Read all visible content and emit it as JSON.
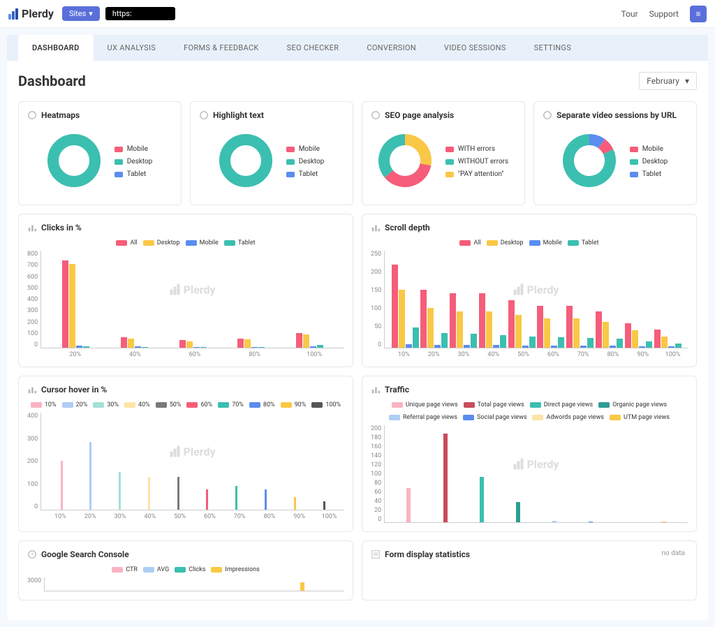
{
  "brand": "Plerdy",
  "topbar": {
    "sites_label": "Sites",
    "url": "https:",
    "tour": "Tour",
    "support": "Support"
  },
  "tabs": [
    {
      "id": "dashboard",
      "label": "DASHBOARD",
      "active": true
    },
    {
      "id": "ux",
      "label": "UX ANALYSIS",
      "active": false
    },
    {
      "id": "forms",
      "label": "FORMS & FEEDBACK",
      "active": false
    },
    {
      "id": "seo",
      "label": "SEO CHECKER",
      "active": false
    },
    {
      "id": "conv",
      "label": "CONVERSION",
      "active": false
    },
    {
      "id": "video",
      "label": "VIDEO SESSIONS",
      "active": false
    },
    {
      "id": "settings",
      "label": "SETTINGS",
      "active": false
    }
  ],
  "page_title": "Dashboard",
  "period": "February",
  "colors": {
    "pink": "#f55d7a",
    "yellow": "#f9c846",
    "blue": "#5b8def",
    "teal": "#3bbfb0",
    "gray": "#7a7a7a",
    "pink_light": "#f9b3c1",
    "yellow_light": "#fde4a6",
    "blue_light": "#aecdf5",
    "teal_light": "#a3e0d8",
    "gray_mid": "#bfbfbf",
    "teal_dark": "#2e9d91",
    "red_dark": "#c94b5e"
  },
  "donuts": {
    "heatmaps": {
      "title": "Heatmaps",
      "legend": [
        {
          "label": "Mobile",
          "color": "#f55d7a"
        },
        {
          "label": "Desktop",
          "color": "#3bbfb0"
        },
        {
          "label": "Tablet",
          "color": "#5b8def"
        }
      ],
      "segments": [
        {
          "color": "#3bbfb0",
          "pct": 100
        }
      ]
    },
    "highlight": {
      "title": "Highlight text",
      "legend": [
        {
          "label": "Mobile",
          "color": "#f55d7a"
        },
        {
          "label": "Desktop",
          "color": "#3bbfb0"
        },
        {
          "label": "Tablet",
          "color": "#5b8def"
        }
      ],
      "segments": [
        {
          "color": "#3bbfb0",
          "pct": 100
        }
      ]
    },
    "seo": {
      "title": "SEO page analysis",
      "legend": [
        {
          "label": "WITH errors",
          "color": "#f55d7a"
        },
        {
          "label": "WITHOUT errors",
          "color": "#3bbfb0"
        },
        {
          "label": "\"PAY attention\"",
          "color": "#f9c846"
        }
      ],
      "segments": [
        {
          "color": "#f9c846",
          "pct": 28
        },
        {
          "color": "#f55d7a",
          "pct": 36
        },
        {
          "color": "#3bbfb0",
          "pct": 36
        }
      ]
    },
    "video": {
      "title": "Separate video sessions by URL",
      "legend": [
        {
          "label": "Mobile",
          "color": "#f55d7a"
        },
        {
          "label": "Desktop",
          "color": "#3bbfb0"
        },
        {
          "label": "Tablet",
          "color": "#5b8def"
        }
      ],
      "segments": [
        {
          "color": "#5b8def",
          "pct": 10
        },
        {
          "color": "#f55d7a",
          "pct": 8
        },
        {
          "color": "#3bbfb0",
          "pct": 82
        }
      ]
    }
  },
  "clicks": {
    "title": "Clicks in %",
    "legend": [
      {
        "label": "All",
        "color": "#f55d7a"
      },
      {
        "label": "Desktop",
        "color": "#f9c846"
      },
      {
        "label": "Mobile",
        "color": "#5b8def"
      },
      {
        "label": "Tablet",
        "color": "#3bbfb0"
      }
    ],
    "ymax": 800,
    "yticks": [
      800,
      700,
      600,
      500,
      400,
      300,
      200,
      100,
      0
    ],
    "categories": [
      "20%",
      "40%",
      "60%",
      "80%",
      "100%"
    ],
    "series": [
      {
        "color": "#f55d7a",
        "values": [
          770,
          90,
          70,
          80,
          130
        ]
      },
      {
        "color": "#f9c846",
        "values": [
          740,
          80,
          55,
          75,
          120
        ]
      },
      {
        "color": "#5b8def",
        "values": [
          20,
          10,
          8,
          8,
          10
        ]
      },
      {
        "color": "#3bbfb0",
        "values": [
          15,
          5,
          5,
          5,
          25
        ]
      }
    ]
  },
  "scroll": {
    "title": "Scroll depth",
    "legend": [
      {
        "label": "All",
        "color": "#f55d7a"
      },
      {
        "label": "Desktop",
        "color": "#f9c846"
      },
      {
        "label": "Mobile",
        "color": "#5b8def"
      },
      {
        "label": "Tablet",
        "color": "#3bbfb0"
      }
    ],
    "ymax": 250,
    "yticks": [
      250,
      200,
      150,
      100,
      50,
      0
    ],
    "categories": [
      "10%",
      "20%",
      "30%",
      "40%",
      "50%",
      "60%",
      "70%",
      "80%",
      "90%",
      "100%"
    ],
    "series": [
      {
        "color": "#f55d7a",
        "values": [
          228,
          160,
          150,
          150,
          130,
          115,
          115,
          100,
          68,
          50
        ]
      },
      {
        "color": "#f9c846",
        "values": [
          160,
          110,
          100,
          100,
          90,
          80,
          80,
          72,
          48,
          30
        ]
      },
      {
        "color": "#5b8def",
        "values": [
          10,
          8,
          8,
          8,
          6,
          5,
          5,
          5,
          4,
          3
        ]
      },
      {
        "color": "#3bbfb0",
        "values": [
          55,
          40,
          38,
          35,
          30,
          28,
          26,
          25,
          18,
          12
        ]
      }
    ]
  },
  "hover": {
    "title": "Cursor hover in %",
    "legend": [
      {
        "label": "10%",
        "color": "#f9b3c1"
      },
      {
        "label": "20%",
        "color": "#aecdf5"
      },
      {
        "label": "30%",
        "color": "#a3e0d8"
      },
      {
        "label": "40%",
        "color": "#fde4a6"
      },
      {
        "label": "50%",
        "color": "#7a7a7a"
      },
      {
        "label": "60%",
        "color": "#f55d7a"
      },
      {
        "label": "70%",
        "color": "#3bbfb0"
      },
      {
        "label": "80%",
        "color": "#5b8def"
      },
      {
        "label": "90%",
        "color": "#f9c846"
      },
      {
        "label": "100%",
        "color": "#555555"
      }
    ],
    "ymax": 400,
    "yticks": [
      400,
      300,
      200,
      100,
      0
    ],
    "categories": [
      "10%",
      "20%",
      "30%",
      "40%",
      "50%",
      "60%",
      "70%",
      "80%",
      "90%",
      "100%"
    ],
    "values": [
      215,
      300,
      165,
      145,
      145,
      90,
      105,
      90,
      55,
      38
    ],
    "colors": [
      "#f9b3c1",
      "#aecdf5",
      "#a3e0d8",
      "#fde4a6",
      "#7a7a7a",
      "#f55d7a",
      "#3bbfb0",
      "#5b8def",
      "#f9c846",
      "#555555"
    ]
  },
  "traffic": {
    "title": "Traffic",
    "legend": [
      {
        "label": "Unique page views",
        "color": "#f9b3c1"
      },
      {
        "label": "Total page views",
        "color": "#c94b5e"
      },
      {
        "label": "Direct page views",
        "color": "#3bbfb0"
      },
      {
        "label": "Organic page views",
        "color": "#2e9d91"
      },
      {
        "label": "Referral page views",
        "color": "#aecdf5"
      },
      {
        "label": "Social page views",
        "color": "#5b8def"
      },
      {
        "label": "Adwords page views",
        "color": "#fde4a6"
      },
      {
        "label": "UTM page views",
        "color": "#f9c846"
      }
    ],
    "ymax": 200,
    "yticks": [
      200,
      180,
      160,
      140,
      120,
      100,
      80,
      60,
      40,
      20,
      0
    ],
    "values": [
      75,
      195,
      100,
      45,
      3,
      2,
      0,
      1
    ],
    "colors": [
      "#f9b3c1",
      "#c94b5e",
      "#3bbfb0",
      "#2e9d91",
      "#aecdf5",
      "#5b8def",
      "#fde4a6",
      "#f9c846"
    ]
  },
  "gsc": {
    "title": "Google Search Console",
    "legend": [
      {
        "label": "CTR",
        "color": "#f9b3c1"
      },
      {
        "label": "AVG",
        "color": "#aecdf5"
      },
      {
        "label": "Clicks",
        "color": "#3bbfb0"
      },
      {
        "label": "Impressions",
        "color": "#f9c846"
      }
    ],
    "ymax": 3000,
    "yticks": [
      3000
    ],
    "values": [
      0,
      0,
      0,
      1800
    ],
    "colors": [
      "#f9b3c1",
      "#aecdf5",
      "#3bbfb0",
      "#f9c846"
    ]
  },
  "form_stats": {
    "title": "Form display statistics",
    "no_data": "no data"
  }
}
